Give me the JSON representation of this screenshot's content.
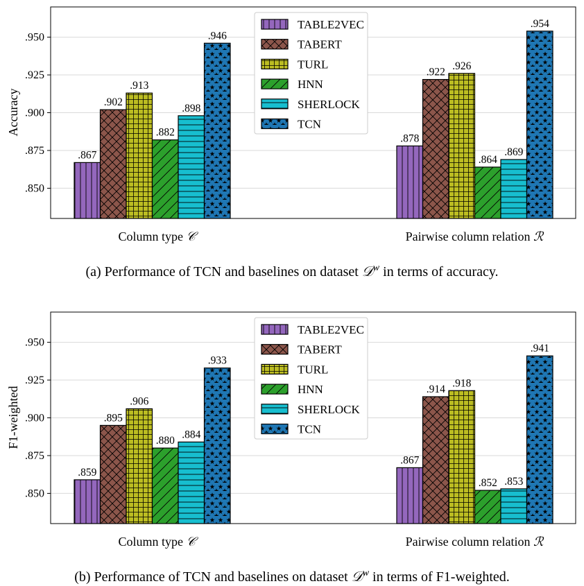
{
  "series_styles": [
    {
      "name": "TABLE2VEC",
      "color": "#9467bd",
      "hatch": "vert"
    },
    {
      "name": "TABERT",
      "color": "#8c564b",
      "hatch": "cross"
    },
    {
      "name": "TURL",
      "color": "#bcbd22",
      "hatch": "grid"
    },
    {
      "name": "HNN",
      "color": "#2ca02c",
      "hatch": "diag"
    },
    {
      "name": "SHERLOCK",
      "color": "#17becf",
      "hatch": "horiz"
    },
    {
      "name": "TCN",
      "color": "#1f77b4",
      "hatch": "star"
    }
  ],
  "chart_data": [
    {
      "type": "bar",
      "panel_caption": "(a) Performance of TCN and baselines on dataset",
      "caption_math": "𝒟",
      "caption_sup": "w",
      "caption_tail": "in terms of accuracy.",
      "ylabel": "Accuracy",
      "ylim": [
        0.83,
        0.97
      ],
      "yticks": [
        ".850",
        ".875",
        ".900",
        ".925",
        ".950"
      ],
      "ytick_values": [
        0.85,
        0.875,
        0.9,
        0.925,
        0.95
      ],
      "categories": [
        {
          "text": "Column type",
          "math": "𝒞"
        },
        {
          "text": "Pairwise column relation",
          "math": "ℛ"
        }
      ],
      "legend_position": "top-center",
      "grid": "horizontal",
      "series": [
        {
          "name": "TABLE2VEC",
          "values": [
            0.867,
            0.878
          ],
          "labels": [
            ".867",
            ".878"
          ]
        },
        {
          "name": "TABERT",
          "values": [
            0.902,
            0.922
          ],
          "labels": [
            ".902",
            ".922"
          ]
        },
        {
          "name": "TURL",
          "values": [
            0.913,
            0.926
          ],
          "labels": [
            ".913",
            ".926"
          ]
        },
        {
          "name": "HNN",
          "values": [
            0.882,
            0.864
          ],
          "labels": [
            ".882",
            ".864"
          ]
        },
        {
          "name": "SHERLOCK",
          "values": [
            0.898,
            0.869
          ],
          "labels": [
            ".898",
            ".869"
          ]
        },
        {
          "name": "TCN",
          "values": [
            0.946,
            0.954
          ],
          "labels": [
            ".946",
            ".954"
          ]
        }
      ]
    },
    {
      "type": "bar",
      "panel_caption": "(b) Performance of TCN and baselines on dataset",
      "caption_math": "𝒟",
      "caption_sup": "w",
      "caption_tail": "in terms of F1-weighted.",
      "ylabel": "F1-weighted",
      "ylim": [
        0.83,
        0.97
      ],
      "yticks": [
        ".850",
        ".875",
        ".900",
        ".925",
        ".950"
      ],
      "ytick_values": [
        0.85,
        0.875,
        0.9,
        0.925,
        0.95
      ],
      "categories": [
        {
          "text": "Column type",
          "math": "𝒞"
        },
        {
          "text": "Pairwise column relation",
          "math": "ℛ"
        }
      ],
      "legend_position": "top-center",
      "grid": "horizontal",
      "series": [
        {
          "name": "TABLE2VEC",
          "values": [
            0.859,
            0.867
          ],
          "labels": [
            ".859",
            ".867"
          ]
        },
        {
          "name": "TABERT",
          "values": [
            0.895,
            0.914
          ],
          "labels": [
            ".895",
            ".914"
          ]
        },
        {
          "name": "TURL",
          "values": [
            0.906,
            0.918
          ],
          "labels": [
            ".906",
            ".918"
          ]
        },
        {
          "name": "HNN",
          "values": [
            0.88,
            0.852
          ],
          "labels": [
            ".880",
            ".852"
          ]
        },
        {
          "name": "SHERLOCK",
          "values": [
            0.884,
            0.853
          ],
          "labels": [
            ".884",
            ".853"
          ]
        },
        {
          "name": "TCN",
          "values": [
            0.933,
            0.941
          ],
          "labels": [
            ".933",
            ".941"
          ]
        }
      ]
    }
  ]
}
